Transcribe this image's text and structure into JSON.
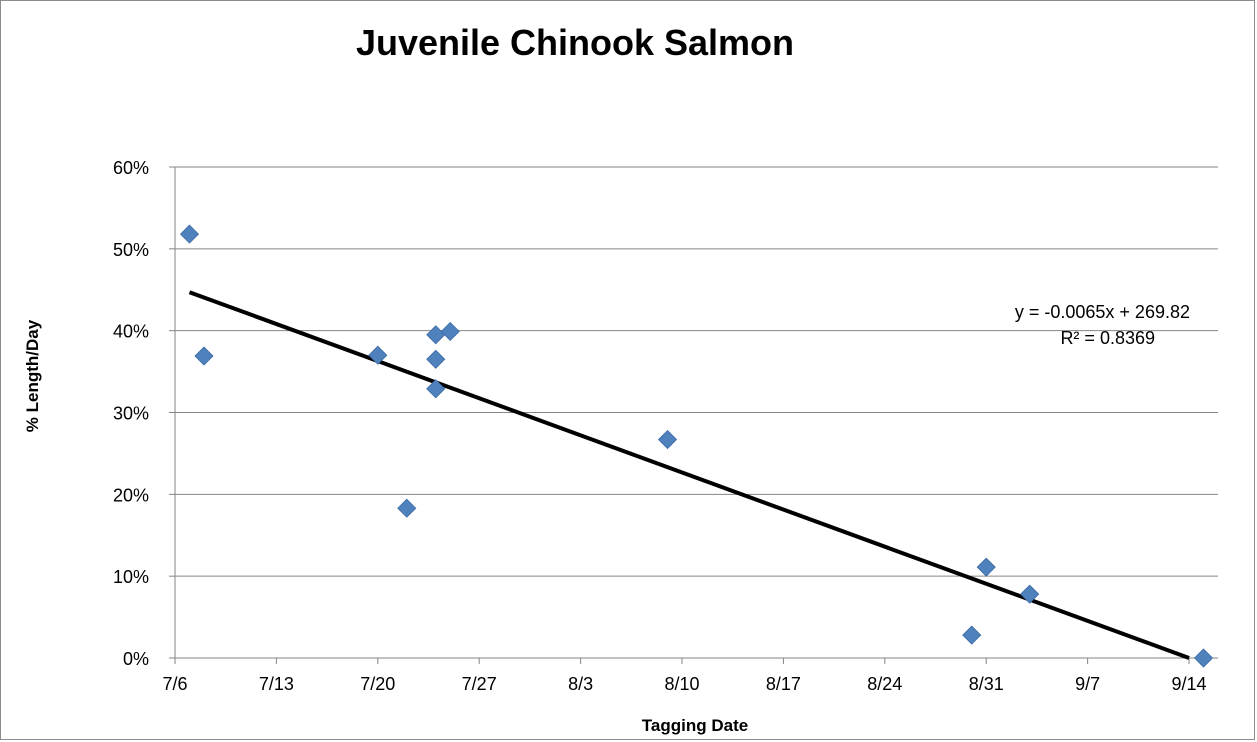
{
  "chart_data": {
    "type": "scatter",
    "title": "Juvenile Chinook Salmon",
    "xlabel": "Tagging Date",
    "ylabel": "% Length/Day",
    "x_ticks": [
      "7/6",
      "7/13",
      "7/20",
      "7/27",
      "8/3",
      "8/10",
      "8/17",
      "8/24",
      "8/31",
      "9/7",
      "9/14"
    ],
    "y_ticks": [
      "0%",
      "10%",
      "20%",
      "30%",
      "40%",
      "50%",
      "60%"
    ],
    "ylim": [
      0,
      0.6
    ],
    "xlim": [
      "7/6",
      "9/16"
    ],
    "grid": "horizontal",
    "marker_color": "#4f81bd",
    "points": [
      {
        "x": "7/7",
        "y": 0.518
      },
      {
        "x": "7/8",
        "y": 0.369
      },
      {
        "x": "7/20",
        "y": 0.37
      },
      {
        "x": "7/22",
        "y": 0.183
      },
      {
        "x": "7/24",
        "y": 0.395
      },
      {
        "x": "7/24",
        "y": 0.365
      },
      {
        "x": "7/24",
        "y": 0.329
      },
      {
        "x": "7/25",
        "y": 0.399
      },
      {
        "x": "8/9",
        "y": 0.267
      },
      {
        "x": "8/30",
        "y": 0.028
      },
      {
        "x": "8/31",
        "y": 0.111
      },
      {
        "x": "9/3",
        "y": 0.078
      },
      {
        "x": "9/15",
        "y": 0.0
      }
    ],
    "trendline": {
      "type": "linear",
      "equation": "y = -0.0065x + 269.82",
      "r_squared": "R² = 0.8369",
      "start": {
        "x": "7/7",
        "y": 0.447
      },
      "end": {
        "x": "9/14",
        "y": 0.0
      }
    }
  }
}
